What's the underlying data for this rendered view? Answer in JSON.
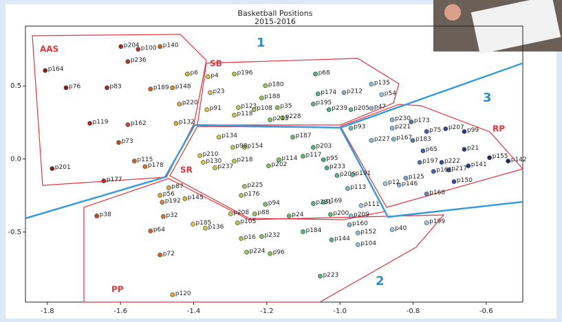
{
  "chart_data": {
    "type": "scatter",
    "title": "Basketball Positions",
    "subtitle": "2015-2016",
    "region_labels": [
      "AAS",
      "SB",
      "SR",
      "PP",
      "RP",
      "1",
      "2",
      "3"
    ],
    "xlim": [
      -1.86,
      -0.5
    ],
    "ylim": [
      -0.98,
      0.91
    ],
    "xticks": [
      -1.8,
      -1.6,
      -1.4,
      -1.2,
      {
        "value": -1,
        "label": "-1.0"
      },
      -0.8,
      -0.6
    ],
    "yticks": [
      -0.5,
      {
        "value": 0,
        "label": "0.0"
      },
      0.5
    ],
    "point_labels": [
      "p164",
      "p76",
      "p83",
      "p204",
      "p100",
      "p140",
      "p236",
      "p189",
      "p148",
      "p6",
      "p4",
      "p23",
      "p220",
      "p119",
      "p162",
      "p132",
      "p73",
      "p115",
      "p178",
      "p201",
      "p177",
      "p91",
      "p118",
      "p196",
      "p68",
      "p180",
      "p188",
      "p123",
      "p108",
      "p35",
      "p195",
      "p174",
      "p212",
      "p135",
      "p54",
      "p239",
      "p205",
      "p47",
      "p228",
      "p213",
      "p93",
      "p221",
      "p230",
      "p173",
      "p167",
      "p227",
      "p75",
      "p207",
      "p99",
      "p21",
      "p155",
      "p142",
      "p141",
      "p150",
      "p217",
      "p222",
      "p161",
      "p197",
      "p183",
      "p65",
      "p146",
      "p125",
      "p12",
      "p168",
      "p187",
      "p203",
      "p117",
      "p95",
      "p233",
      "p206",
      "p113",
      "p191",
      "p134",
      "p154",
      "p98",
      "p210",
      "p130",
      "p237",
      "p218",
      "p202",
      "p114",
      "p225",
      "p176",
      "p94",
      "p231",
      "p169",
      "p24",
      "p209",
      "p200",
      "p111",
      "p160",
      "p40",
      "p199",
      "p152",
      "p104",
      "p144",
      "p184",
      "p232",
      "p16",
      "p224",
      "p96",
      "p223",
      "p105",
      "p208",
      "p88",
      "p185",
      "p136",
      "p145",
      "p192",
      "p56",
      "p87",
      "p38",
      "p32",
      "p64",
      "p72",
      "p120"
    ],
    "x": [
      -1.806,
      -1.749,
      -1.637,
      -1.599,
      -1.552,
      -1.492,
      -1.58,
      -1.518,
      -1.458,
      -1.417,
      -1.361,
      -1.355,
      -1.439,
      -1.684,
      -1.58,
      -1.448,
      -1.605,
      -1.562,
      -1.533,
      -1.787,
      -1.646,
      -1.364,
      -1.289,
      -1.289,
      -1.067,
      -1.204,
      -1.214,
      -1.278,
      -1.235,
      -1.171,
      -1.073,
      -1.06,
      -0.989,
      -0.914,
      -0.886,
      -1.03,
      -0.97,
      -0.914,
      -1.157,
      -1.191,
      -0.97,
      -0.857,
      -0.857,
      -0.805,
      -0.853,
      -0.914,
      -0.763,
      -0.711,
      -0.66,
      -0.66,
      -0.591,
      -0.54,
      -0.649,
      -0.688,
      -0.703,
      -0.722,
      -0.744,
      -0.782,
      -0.801,
      -0.773,
      -0.838,
      -0.82,
      -0.876,
      -0.763,
      -1.129,
      -1.073,
      -1.101,
      -1.045,
      -1.036,
      -1.008,
      -0.979,
      -0.966,
      -1.331,
      -1.261,
      -1.293,
      -1.383,
      -1.374,
      -1.342,
      -1.289,
      -1.195,
      -1.167,
      -1.261,
      -1.27,
      -1.204,
      -1.073,
      -1.045,
      -1.139,
      -0.97,
      -1.026,
      -0.942,
      -0.974,
      -0.857,
      -0.763,
      -0.951,
      -0.951,
      -1.023,
      -1.101,
      -1.214,
      -1.27,
      -1.255,
      -1.191,
      -1.054,
      -1.28,
      -1.299,
      -1.233,
      -1.402,
      -1.368,
      -1.424,
      -1.486,
      -1.492,
      -1.468,
      -1.665,
      -1.483,
      -1.518,
      -1.492,
      -1.458
    ],
    "values": [
      0.606,
      0.488,
      0.488,
      0.77,
      0.751,
      0.77,
      0.667,
      0.479,
      0.488,
      0.582,
      0.563,
      0.455,
      0.376,
      0.244,
      0.235,
      0.244,
      0.113,
      -0.014,
      -0.052,
      -0.066,
      -0.15,
      0.338,
      0.3,
      0.582,
      0.582,
      0.502,
      0.418,
      0.352,
      0.338,
      0.352,
      0.376,
      0.446,
      0.455,
      0.512,
      0.441,
      0.338,
      0.338,
      0.347,
      0.282,
      0.268,
      0.211,
      0.211,
      0.268,
      0.254,
      0.136,
      0.127,
      0.188,
      0.207,
      0.188,
      0.066,
      0.009,
      -0.014,
      -0.047,
      -0.155,
      -0.075,
      -0.023,
      -0.085,
      -0.023,
      0.127,
      0.056,
      -0.178,
      -0.131,
      -0.169,
      -0.239,
      0.15,
      0.08,
      0.019,
      -0.005,
      -0.061,
      -0.113,
      -0.202,
      -0.108,
      0.15,
      0.08,
      0.08,
      0.023,
      -0.023,
      -0.061,
      -0.014,
      -0.047,
      -0.005,
      -0.188,
      -0.249,
      -0.31,
      -0.305,
      -0.296,
      -0.39,
      -0.39,
      -0.38,
      -0.319,
      -0.451,
      -0.484,
      -0.437,
      -0.507,
      -0.587,
      -0.554,
      -0.498,
      -0.531,
      -0.545,
      -0.638,
      -0.648,
      -0.803,
      -0.437,
      -0.376,
      -0.376,
      -0.446,
      -0.474,
      -0.272,
      -0.296,
      -0.249,
      -0.197,
      -0.39,
      -0.394,
      -0.493,
      -0.657,
      -0.93
    ],
    "colors": [
      "#8b1a1a",
      "#8b1a1a",
      "#a82b1e",
      "#a82b1e",
      "#b8361f",
      "#d0602a",
      "#b8361f",
      "#d0602a",
      "#e08a30",
      "#d9b340",
      "#d9c64a",
      "#d9c64a",
      "#e0a838",
      "#a82b1e",
      "#c04a24",
      "#e0a838",
      "#c04a24",
      "#d0602a",
      "#d57a2c",
      "#8b1a1a",
      "#a82b1e",
      "#d9c64a",
      "#c8cc52",
      "#b8c855",
      "#5cb57c",
      "#9bc45a",
      "#9bc45a",
      "#b8c855",
      "#a8c658",
      "#8cc05e",
      "#5cb57c",
      "#5aaf86",
      "#7fb8c0",
      "#8fc0d8",
      "#9fc8e0",
      "#4fae8a",
      "#6fb4b0",
      "#8fc0d8",
      "#8cc05e",
      "#7fbd62",
      "#7fb8c0",
      "#8fb4d8",
      "#8fb4d8",
      "#5a70b0",
      "#8fb4d8",
      "#8fc0d8",
      "#4a5fa8",
      "#3a4a98",
      "#2a3a88",
      "#2a3a88",
      "#1c2a6e",
      "#1c2a6e",
      "#2a3a88",
      "#3a4a98",
      "#3a4a98",
      "#3a4a98",
      "#4a5fa8",
      "#5a70b0",
      "#5a70b0",
      "#4a5fa8",
      "#8fb4d8",
      "#7f9fd0",
      "#9fc8e0",
      "#6f88c0",
      "#6cb86e",
      "#5cb57c",
      "#62b775",
      "#4fae8a",
      "#4fae8a",
      "#58b0a0",
      "#7fb8c0",
      "#6fb4b0",
      "#cfc84e",
      "#a8c658",
      "#b8c855",
      "#d9c64a",
      "#d9c64a",
      "#cfc84e",
      "#b8c855",
      "#8cc05e",
      "#7fbd62",
      "#a8c658",
      "#b0c656",
      "#8cc05e",
      "#5cb57c",
      "#4fae8a",
      "#6cb86e",
      "#8fc0d8",
      "#62b775",
      "#9fc8e0",
      "#7fb8c0",
      "#9fc8e0",
      "#9fc8e0",
      "#8fc0d8",
      "#8fc0d8",
      "#58b0a0",
      "#62b775",
      "#8cc05e",
      "#a8c658",
      "#9bc45a",
      "#8cc05e",
      "#5cb57c",
      "#b0c656",
      "#cfc84e",
      "#9bc45a",
      "#d9c64a",
      "#cfc84e",
      "#d9b340",
      "#e08a30",
      "#e0a838",
      "#e0a838",
      "#c04a24",
      "#d57a2c",
      "#d0602a",
      "#d0602a",
      "#e0a838"
    ]
  }
}
